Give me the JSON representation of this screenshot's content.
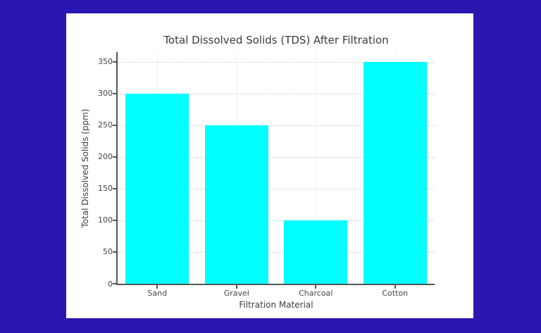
{
  "chart_data": {
    "type": "bar",
    "title": "Total Dissolved Solids (TDS) After Filtration",
    "xlabel": "Filtration Material",
    "ylabel": "Total Dissolved Solids (ppm)",
    "categories": [
      "Sand",
      "Gravel",
      "Charcoal",
      "Cotton"
    ],
    "values": [
      300,
      250,
      100,
      350
    ],
    "yticks": [
      0,
      50,
      100,
      150,
      200,
      250,
      300,
      350
    ],
    "ylim": [
      0,
      364
    ],
    "bar_width_frac": 0.8,
    "grid": true,
    "legend": "none",
    "colors": {
      "bar": "#00ffff",
      "figure_background": "#ffffff",
      "page_background": "#2b16b2",
      "spine": "#555555",
      "title_text": "#3a3a3a",
      "tick_text": "#444444"
    }
  }
}
